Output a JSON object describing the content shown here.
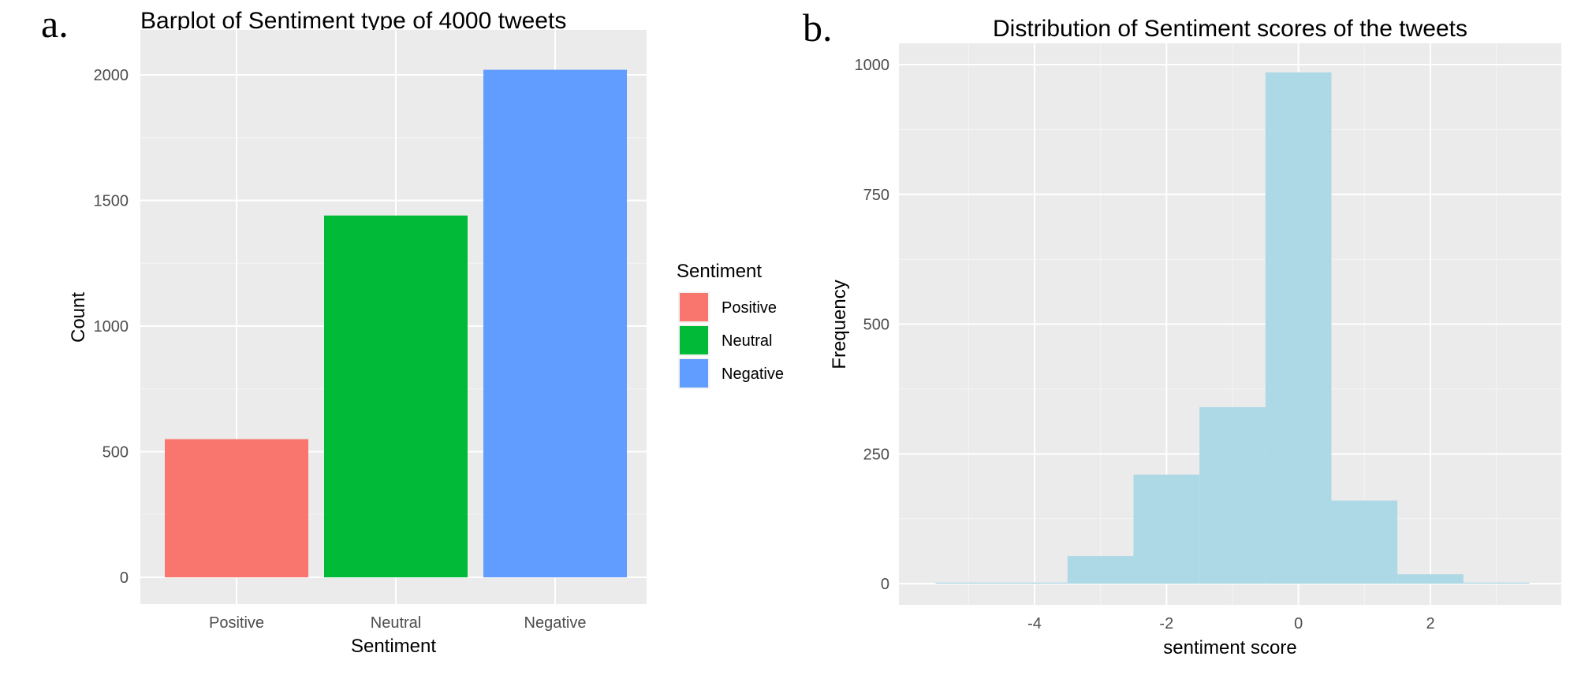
{
  "chart_data": [
    {
      "type": "bar",
      "panel_label": "a.",
      "title": "Barplot of Sentiment type of 4000 tweets",
      "xlabel": "Sentiment",
      "ylabel": "Count",
      "categories": [
        "Positive",
        "Neutral",
        "Negative"
      ],
      "values": [
        550,
        1440,
        2020
      ],
      "colors": [
        "#F8766D",
        "#00BA38",
        "#619CFF"
      ],
      "ylim": [
        0,
        2100
      ],
      "yticks": [
        0,
        500,
        1000,
        1500,
        2000
      ],
      "grid": true,
      "legend": {
        "title": "Sentiment",
        "placement": "right",
        "items": [
          "Positive",
          "Neutral",
          "Negative"
        ]
      }
    },
    {
      "type": "bar",
      "subtype": "histogram",
      "panel_label": "b.",
      "title": "Distribution of Sentiment scores of the tweets",
      "xlabel": "sentiment score",
      "ylabel": "Frequency",
      "bin_width": 1,
      "x": [
        -5,
        -4,
        -3,
        -2,
        -1,
        0,
        1,
        2,
        3
      ],
      "values": [
        2,
        2,
        53,
        210,
        340,
        985,
        160,
        18,
        2
      ],
      "color": "#ADD8E6",
      "xlim": [
        -5.8,
        3.9
      ],
      "ylim": [
        -30,
        1050
      ],
      "xticks": [
        -4,
        -2,
        0,
        2
      ],
      "yticks": [
        0,
        250,
        500,
        750,
        1000
      ],
      "grid": true
    }
  ]
}
